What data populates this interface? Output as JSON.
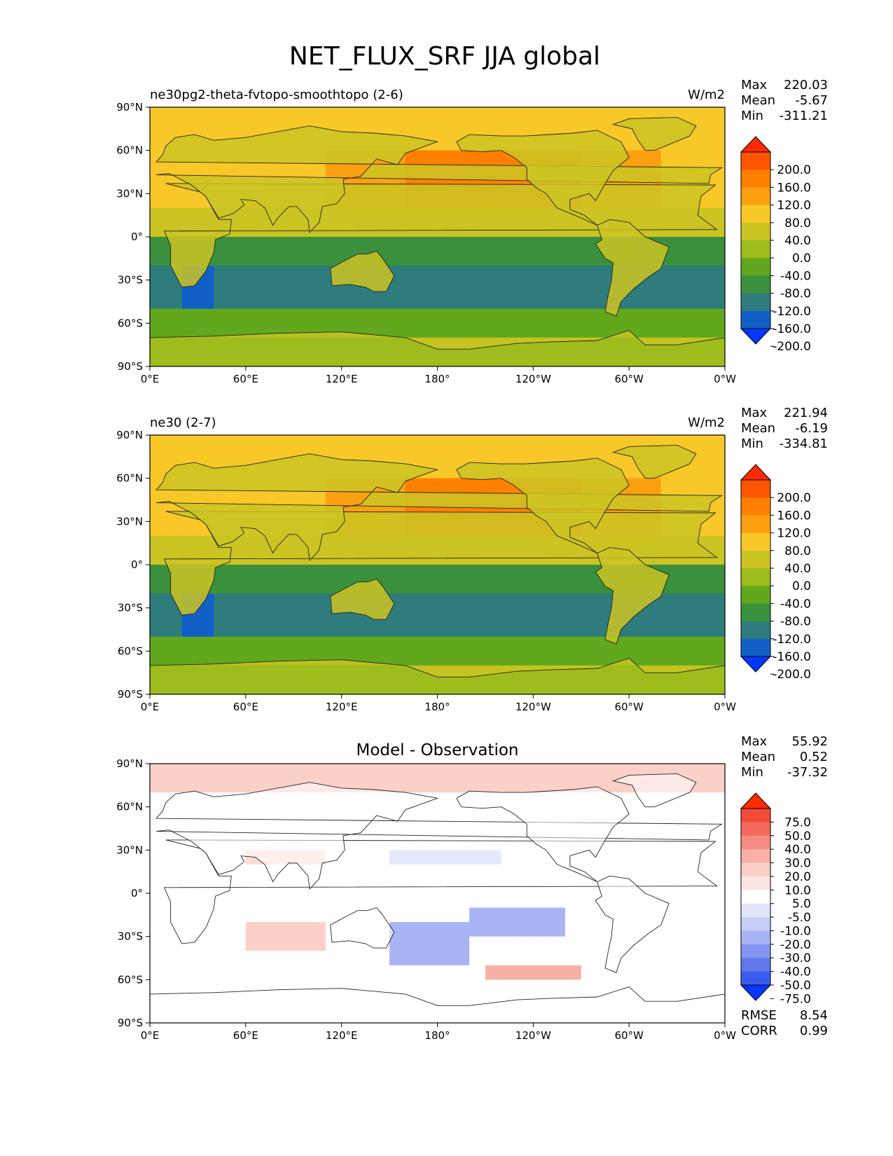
{
  "figure_title": "NET_FLUX_SRF JJA global",
  "chart_data": [
    {
      "type": "heatmap",
      "left_title": "ne30pg2-theta-fvtopo-smoothtopo (2-6)",
      "right_title": "W/m2",
      "xticks": [
        "0°E",
        "60°E",
        "120°E",
        "180°",
        "120°W",
        "60°W",
        "0°W"
      ],
      "yticks": [
        "90°N",
        "60°N",
        "30°N",
        "0°",
        "30°S",
        "60°S",
        "90°S"
      ],
      "xlim": [
        0,
        360
      ],
      "ylim": [
        -90,
        90
      ],
      "stats": [
        {
          "label": "Max",
          "value": "220.03"
        },
        {
          "label": "Mean",
          "value": "-5.67"
        },
        {
          "label": "Min",
          "value": "-311.21"
        }
      ],
      "colorbar": {
        "labels": [
          "200.0",
          "160.0",
          "120.0",
          "80.0",
          "40.0",
          "0.0",
          "-40.0",
          "-80.0",
          "-120.0",
          "-160.0",
          "-200.0"
        ],
        "colors": [
          "#ff2a00",
          "#ff5500",
          "#ff8000",
          "#fca012",
          "#f8c828",
          "#cbc423",
          "#9ebc1c",
          "#62a81c",
          "#3a903c",
          "#2e7c7c",
          "#1060c8",
          "#0038ff"
        ]
      }
    },
    {
      "type": "heatmap",
      "left_title": "ne30 (2-7)",
      "right_title": "W/m2",
      "xticks": [
        "0°E",
        "60°E",
        "120°E",
        "180°",
        "120°W",
        "60°W",
        "0°W"
      ],
      "yticks": [
        "90°N",
        "60°N",
        "30°N",
        "0°",
        "30°S",
        "60°S",
        "90°S"
      ],
      "xlim": [
        0,
        360
      ],
      "ylim": [
        -90,
        90
      ],
      "stats": [
        {
          "label": "Max",
          "value": "221.94"
        },
        {
          "label": "Mean",
          "value": "-6.19"
        },
        {
          "label": "Min",
          "value": "-334.81"
        }
      ],
      "colorbar": {
        "labels": [
          "200.0",
          "160.0",
          "120.0",
          "80.0",
          "40.0",
          "0.0",
          "-40.0",
          "-80.0",
          "-120.0",
          "-160.0",
          "-200.0"
        ],
        "colors": [
          "#ff2a00",
          "#ff5500",
          "#ff8000",
          "#fca012",
          "#f8c828",
          "#cbc423",
          "#9ebc1c",
          "#62a81c",
          "#3a903c",
          "#2e7c7c",
          "#1060c8",
          "#0038ff"
        ]
      }
    },
    {
      "type": "heatmap",
      "title": "Model - Observation",
      "xticks": [
        "0°E",
        "60°E",
        "120°E",
        "180°",
        "120°W",
        "60°W",
        "0°W"
      ],
      "yticks": [
        "90°N",
        "60°N",
        "30°N",
        "0°",
        "30°S",
        "60°S",
        "90°S"
      ],
      "xlim": [
        0,
        360
      ],
      "ylim": [
        -90,
        90
      ],
      "stats": [
        {
          "label": "Max",
          "value": "55.92"
        },
        {
          "label": "Mean",
          "value": "0.52"
        },
        {
          "label": "Min",
          "value": "-37.32"
        }
      ],
      "metrics": [
        {
          "label": "RMSE",
          "value": "8.54"
        },
        {
          "label": "CORR",
          "value": "0.99"
        }
      ],
      "colorbar": {
        "labels": [
          "75.0",
          "50.0",
          "40.0",
          "30.0",
          "20.0",
          "10.0",
          "5.0",
          "-5.0",
          "-10.0",
          "-20.0",
          "-30.0",
          "-40.0",
          "-50.0",
          "-75.0"
        ],
        "colors": [
          "#ff2a00",
          "#f34a3a",
          "#f46a5c",
          "#f68c80",
          "#f9b0a6",
          "#fbd0c8",
          "#fde6e2",
          "#ffffff",
          "#e2e6fb",
          "#c6cef8",
          "#a8b4f4",
          "#8496ef",
          "#5e78ea",
          "#3c5cf0",
          "#0038ff"
        ]
      }
    }
  ]
}
